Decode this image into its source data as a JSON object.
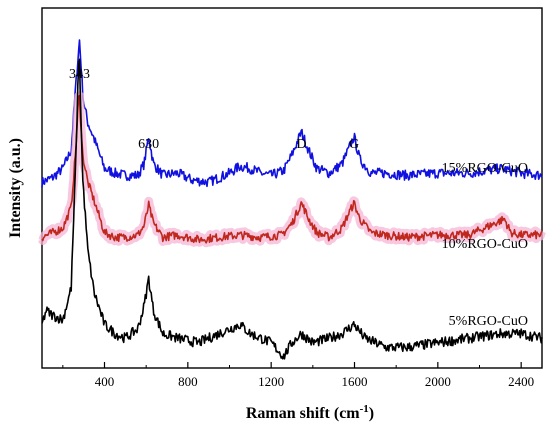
{
  "chart_data": {
    "type": "line",
    "title": "",
    "xlabel_main": "Raman shift (cm",
    "xlabel_sup": "-1",
    "xlabel_close": ")",
    "ylabel": "Intensity (a.u.)",
    "xlim": [
      100,
      2500
    ],
    "xticks": [
      "400",
      "800",
      "1200",
      "1600",
      "2000",
      "2400"
    ],
    "xtick_values": [
      400,
      800,
      1200,
      1600,
      2000,
      2400
    ],
    "yticks": "none",
    "grid": false,
    "legend": "none (series labelled inline)",
    "annotations": [
      {
        "text": "343",
        "x": 280
      },
      {
        "text": "630",
        "x": 612
      },
      {
        "text": "D",
        "x": 1345
      },
      {
        "text": "G",
        "x": 1598
      }
    ],
    "series": [
      {
        "name": "15%RGO-CuO",
        "color": "#1010e0",
        "baseline": 0.38,
        "noise": 0.022,
        "points": [
          [
            100,
            0.36
          ],
          [
            150,
            0.38
          ],
          [
            200,
            0.42
          ],
          [
            240,
            0.5
          ],
          [
            262,
            0.78
          ],
          [
            280,
            0.98
          ],
          [
            298,
            0.72
          ],
          [
            320,
            0.62
          ],
          [
            350,
            0.55
          ],
          [
            400,
            0.42
          ],
          [
            450,
            0.4
          ],
          [
            500,
            0.39
          ],
          [
            560,
            0.39
          ],
          [
            590,
            0.44
          ],
          [
            612,
            0.56
          ],
          [
            635,
            0.44
          ],
          [
            680,
            0.39
          ],
          [
            750,
            0.4
          ],
          [
            820,
            0.37
          ],
          [
            900,
            0.36
          ],
          [
            950,
            0.38
          ],
          [
            1000,
            0.4
          ],
          [
            1050,
            0.43
          ],
          [
            1100,
            0.42
          ],
          [
            1150,
            0.4
          ],
          [
            1200,
            0.39
          ],
          [
            1260,
            0.41
          ],
          [
            1300,
            0.48
          ],
          [
            1345,
            0.58
          ],
          [
            1380,
            0.5
          ],
          [
            1420,
            0.42
          ],
          [
            1480,
            0.4
          ],
          [
            1540,
            0.44
          ],
          [
            1570,
            0.5
          ],
          [
            1598,
            0.56
          ],
          [
            1625,
            0.46
          ],
          [
            1680,
            0.4
          ],
          [
            1750,
            0.4
          ],
          [
            1850,
            0.39
          ],
          [
            2000,
            0.4
          ],
          [
            2150,
            0.4
          ],
          [
            2300,
            0.42
          ],
          [
            2400,
            0.4
          ],
          [
            2500,
            0.39
          ]
        ]
      },
      {
        "name": "10%RGO-CuO",
        "color": "#c0281e",
        "halo": "#f4b6d6",
        "baseline": 0.12,
        "noise": 0.018,
        "points": [
          [
            100,
            0.12
          ],
          [
            150,
            0.14
          ],
          [
            200,
            0.16
          ],
          [
            240,
            0.25
          ],
          [
            262,
            0.5
          ],
          [
            278,
            0.76
          ],
          [
            295,
            0.48
          ],
          [
            320,
            0.36
          ],
          [
            350,
            0.28
          ],
          [
            400,
            0.14
          ],
          [
            450,
            0.12
          ],
          [
            500,
            0.12
          ],
          [
            560,
            0.13
          ],
          [
            590,
            0.17
          ],
          [
            612,
            0.26
          ],
          [
            635,
            0.18
          ],
          [
            680,
            0.12
          ],
          [
            750,
            0.13
          ],
          [
            850,
            0.11
          ],
          [
            950,
            0.12
          ],
          [
            1050,
            0.13
          ],
          [
            1150,
            0.12
          ],
          [
            1250,
            0.13
          ],
          [
            1300,
            0.18
          ],
          [
            1345,
            0.27
          ],
          [
            1380,
            0.2
          ],
          [
            1420,
            0.14
          ],
          [
            1480,
            0.12
          ],
          [
            1540,
            0.16
          ],
          [
            1570,
            0.22
          ],
          [
            1598,
            0.27
          ],
          [
            1625,
            0.2
          ],
          [
            1680,
            0.14
          ],
          [
            1750,
            0.13
          ],
          [
            1850,
            0.12
          ],
          [
            2000,
            0.13
          ],
          [
            2150,
            0.13
          ],
          [
            2320,
            0.2
          ],
          [
            2350,
            0.14
          ],
          [
            2400,
            0.13
          ],
          [
            2500,
            0.13
          ]
        ]
      },
      {
        "name": "5%RGO-CuO",
        "color": "#000000",
        "baseline": -0.32,
        "noise": 0.022,
        "points": [
          [
            100,
            -0.26
          ],
          [
            120,
            -0.2
          ],
          [
            150,
            -0.22
          ],
          [
            200,
            -0.24
          ],
          [
            240,
            -0.1
          ],
          [
            262,
            0.45
          ],
          [
            278,
            0.95
          ],
          [
            295,
            0.38
          ],
          [
            320,
            0.06
          ],
          [
            350,
            -0.12
          ],
          [
            400,
            -0.26
          ],
          [
            450,
            -0.3
          ],
          [
            500,
            -0.32
          ],
          [
            560,
            -0.28
          ],
          [
            590,
            -0.18
          ],
          [
            612,
            -0.06
          ],
          [
            635,
            -0.2
          ],
          [
            680,
            -0.3
          ],
          [
            750,
            -0.32
          ],
          [
            850,
            -0.34
          ],
          [
            950,
            -0.3
          ],
          [
            1000,
            -0.28
          ],
          [
            1050,
            -0.26
          ],
          [
            1100,
            -0.3
          ],
          [
            1150,
            -0.32
          ],
          [
            1200,
            -0.34
          ],
          [
            1260,
            -0.4
          ],
          [
            1300,
            -0.34
          ],
          [
            1345,
            -0.3
          ],
          [
            1400,
            -0.34
          ],
          [
            1480,
            -0.32
          ],
          [
            1540,
            -0.3
          ],
          [
            1598,
            -0.26
          ],
          [
            1650,
            -0.32
          ],
          [
            1750,
            -0.36
          ],
          [
            1850,
            -0.36
          ],
          [
            2000,
            -0.34
          ],
          [
            2150,
            -0.32
          ],
          [
            2300,
            -0.3
          ],
          [
            2400,
            -0.3
          ],
          [
            2500,
            -0.32
          ]
        ]
      }
    ]
  }
}
